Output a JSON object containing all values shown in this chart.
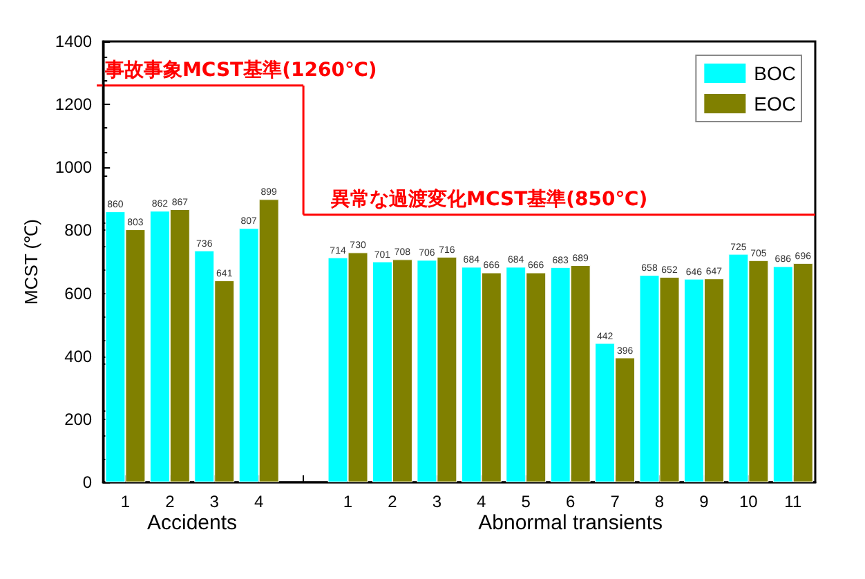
{
  "chart_data": {
    "type": "bar",
    "ylabel": "MCST (℃)",
    "categories": [
      "1",
      "2",
      "3",
      "4",
      null,
      "1",
      "2",
      "3",
      "4",
      "5",
      "6",
      "7",
      "8",
      "9",
      "10",
      "11"
    ],
    "series": [
      {
        "name": "BOC",
        "color": "#00ffff",
        "values": [
          860,
          862,
          736,
          807,
          null,
          714,
          701,
          706,
          684,
          684,
          683,
          442,
          658,
          646,
          725,
          686
        ]
      },
      {
        "name": "EOC",
        "color": "#808000",
        "values": [
          803,
          867,
          641,
          899,
          null,
          730,
          708,
          716,
          666,
          666,
          689,
          396,
          652,
          647,
          705,
          696
        ]
      }
    ],
    "ylim": [
      0,
      1400
    ],
    "yticks": [
      0,
      200,
      400,
      600,
      800,
      1000,
      1200,
      1400
    ],
    "ref_lines": [
      {
        "axis": "y",
        "value": 1260,
        "label": "事故事象MCST基準(1260℃)",
        "color": "#ff0000"
      },
      {
        "axis": "y",
        "value": 850,
        "label": "異常な過渡変化MCST基準(850℃)",
        "color": "#ff0000"
      }
    ],
    "annotations": [
      "Accidents",
      "Abnormal transients"
    ],
    "data_labels": true,
    "grid": false,
    "legend": "top right"
  }
}
